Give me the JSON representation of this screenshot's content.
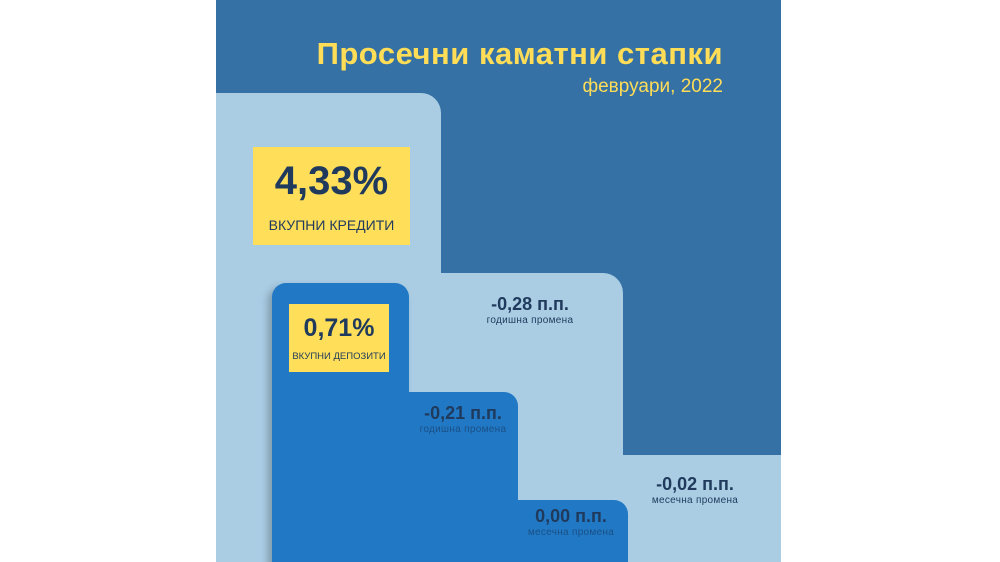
{
  "header": {
    "title": "Просечни каматни стапки",
    "period": "февруари, 2022"
  },
  "credits": {
    "rate": "4,33%",
    "label": "ВКУПНИ КРЕДИТИ",
    "annual_change": {
      "value": "-0,28 п.п.",
      "label": "годишна промена"
    },
    "monthly_change": {
      "value": "-0,02 п.п.",
      "label": "месечна промена"
    }
  },
  "deposits": {
    "rate": "0,71%",
    "label": "ВКУПНИ ДЕПОЗИТИ",
    "annual_change": {
      "value": "-0,21 п.п.",
      "label": "годишна промена"
    },
    "monthly_change": {
      "value": "0,00 п.п.",
      "label": "месечна промена"
    }
  },
  "colors": {
    "background": "#3571a5",
    "credits": "#aacde4",
    "deposits": "#2179c5",
    "highlight": "#ffde59",
    "title": "#ffdd57",
    "text": "#1f3a5c"
  }
}
